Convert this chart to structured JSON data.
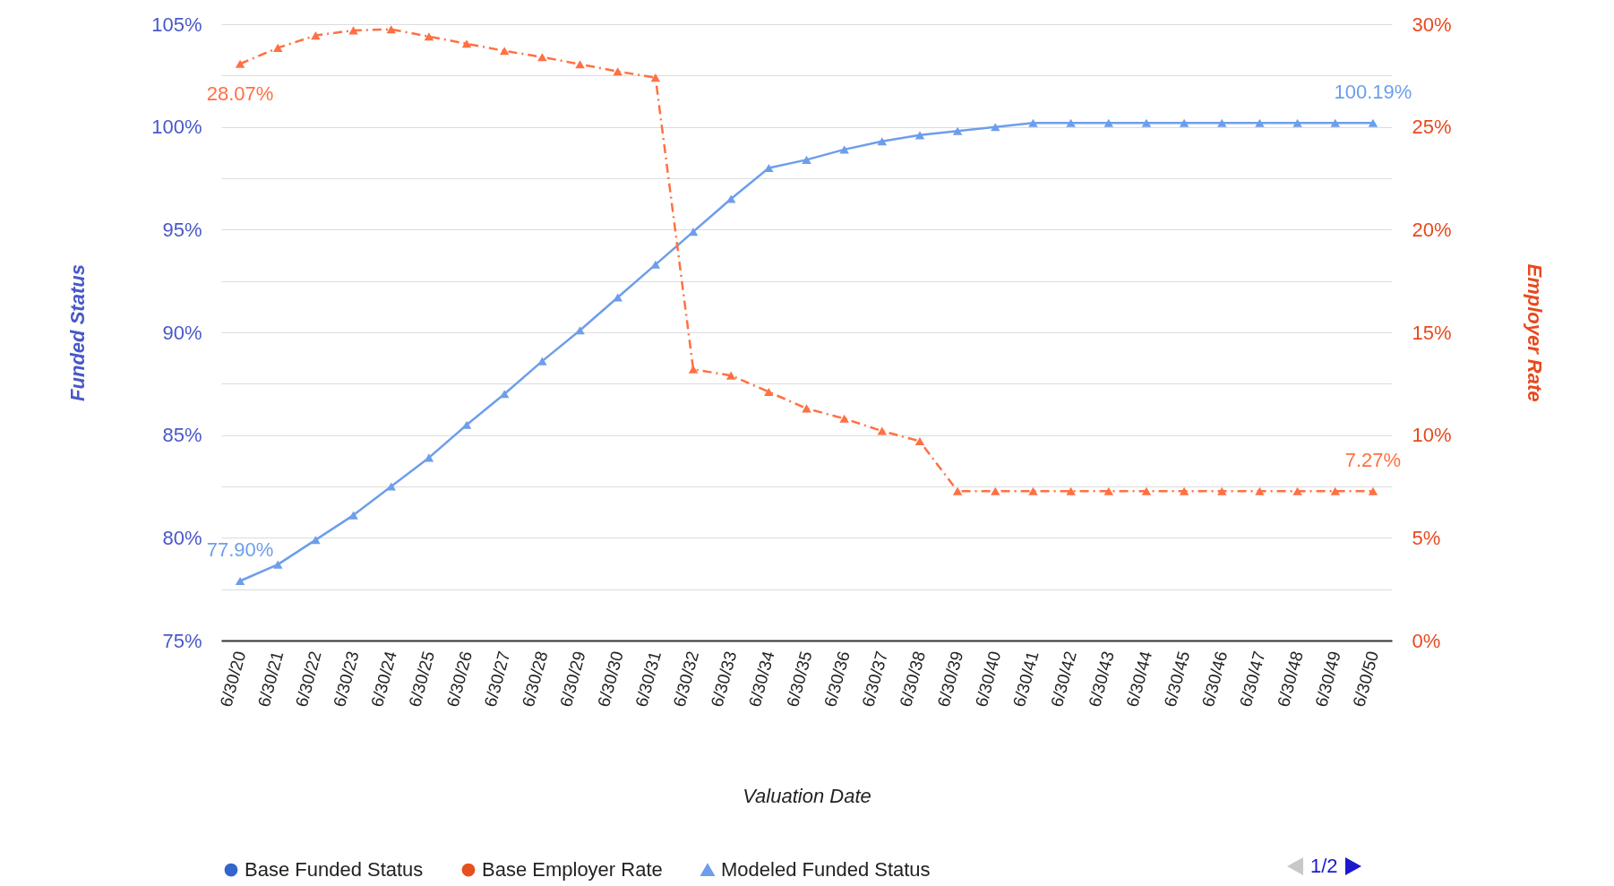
{
  "chart_data": {
    "type": "line",
    "xlabel": "Valuation Date",
    "ylabel": "Funded Status",
    "y2label": "Employer Rate",
    "categories": [
      "6/30/20",
      "6/30/21",
      "6/30/22",
      "6/30/23",
      "6/30/24",
      "6/30/25",
      "6/30/26",
      "6/30/27",
      "6/30/28",
      "6/30/29",
      "6/30/30",
      "6/30/31",
      "6/30/32",
      "6/30/33",
      "6/30/34",
      "6/30/35",
      "6/30/36",
      "6/30/37",
      "6/30/38",
      "6/30/39",
      "6/30/40",
      "6/30/41",
      "6/30/42",
      "6/30/43",
      "6/30/44",
      "6/30/45",
      "6/30/46",
      "6/30/47",
      "6/30/48",
      "6/30/49",
      "6/30/50"
    ],
    "series": [
      {
        "name": "Base Funded Status",
        "color": "#3366cc",
        "marker": "circle",
        "line_style": "solid",
        "values": [
          null,
          null,
          null,
          null,
          null,
          null,
          null,
          null,
          null,
          null,
          null,
          null,
          null,
          null,
          null,
          null,
          null,
          null,
          null,
          null,
          null,
          null,
          null,
          null,
          null,
          null,
          null,
          null,
          null,
          null,
          null
        ]
      },
      {
        "name": "Base Employer Rate",
        "color": "#e6501e",
        "marker": "circle",
        "line_style": "dashed",
        "axis": "y2",
        "values": [
          null,
          null,
          null,
          null,
          null,
          null,
          null,
          null,
          null,
          null,
          null,
          null,
          null,
          null,
          null,
          null,
          null,
          null,
          null,
          null,
          null,
          null,
          null,
          null,
          null,
          null,
          null,
          null,
          null,
          null,
          null
        ]
      },
      {
        "name": "Modeled Funded Status",
        "color": "#6d9eeb",
        "marker": "triangle",
        "line_style": "solid",
        "values": [
          77.9,
          78.7,
          79.9,
          81.1,
          82.5,
          83.9,
          85.5,
          87.0,
          88.6,
          90.1,
          91.7,
          93.3,
          94.9,
          96.5,
          98.0,
          98.4,
          98.9,
          99.3,
          99.6,
          99.8,
          100.0,
          100.19,
          100.19,
          100.19,
          100.19,
          100.19,
          100.19,
          100.19,
          100.19,
          100.19,
          100.19
        ],
        "value_labels": [
          "77.90%",
          null,
          null,
          null,
          null,
          null,
          null,
          null,
          null,
          null,
          null,
          null,
          null,
          null,
          null,
          null,
          null,
          null,
          null,
          null,
          null,
          null,
          null,
          null,
          null,
          null,
          null,
          null,
          null,
          null,
          "100.19%"
        ]
      },
      {
        "color": "#ff7043",
        "marker": "triangle",
        "line_style": "dashed",
        "axis": "y2",
        "values": [
          28.07,
          28.85,
          29.45,
          29.7,
          29.75,
          29.4,
          29.05,
          28.7,
          28.4,
          28.05,
          27.7,
          27.4,
          13.2,
          12.9,
          12.1,
          11.3,
          10.8,
          10.2,
          9.7,
          7.27,
          7.27,
          7.27,
          7.27,
          7.27,
          7.27,
          7.27,
          7.27,
          7.27,
          7.27,
          7.27,
          7.27
        ],
        "value_labels": [
          "28.07%",
          null,
          null,
          null,
          null,
          null,
          null,
          null,
          null,
          null,
          null,
          null,
          null,
          null,
          null,
          null,
          null,
          null,
          null,
          null,
          null,
          null,
          null,
          null,
          null,
          null,
          null,
          null,
          null,
          null,
          "7.27%"
        ]
      }
    ],
    "ylim": [
      75,
      105
    ],
    "yticks": [
      {
        "value": 75,
        "label": "75%"
      },
      {
        "value": 77.5,
        "label": null
      },
      {
        "value": 80,
        "label": "80%"
      },
      {
        "value": 82.5,
        "label": null
      },
      {
        "value": 85,
        "label": "85%"
      },
      {
        "value": 87.5,
        "label": null
      },
      {
        "value": 90,
        "label": "90%"
      },
      {
        "value": 92.5,
        "label": null
      },
      {
        "value": 95,
        "label": "95%"
      },
      {
        "value": 97.5,
        "label": null
      },
      {
        "value": 100,
        "label": "100%"
      },
      {
        "value": 102.5,
        "label": null
      },
      {
        "value": 105,
        "label": "105%"
      }
    ],
    "y2lim": [
      0,
      30
    ],
    "y2ticks": [
      {
        "value": 0,
        "label": "0%"
      },
      {
        "value": 5,
        "label": "5%"
      },
      {
        "value": 10,
        "label": "10%"
      },
      {
        "value": 15,
        "label": "15%"
      },
      {
        "value": 20,
        "label": "20%"
      },
      {
        "value": 25,
        "label": "25%"
      },
      {
        "value": 30,
        "label": "30%"
      }
    ],
    "grid": "y",
    "legend": "bottom",
    "annotations": [
      "1/2"
    ]
  }
}
